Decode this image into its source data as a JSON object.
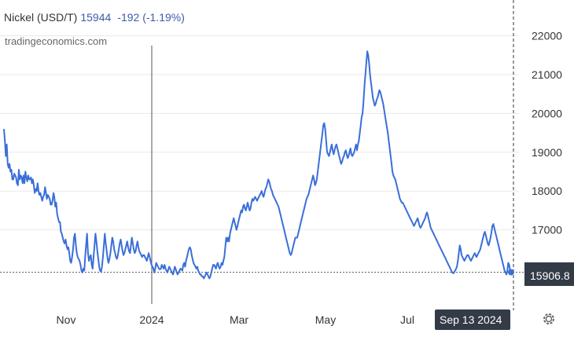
{
  "header": {
    "name": "Nickel (USD/T)",
    "price": "15944",
    "change": "-192 (-1.19%)",
    "source": "tradingeconomics.com"
  },
  "cursor": {
    "date_label": "Sep 13 2024",
    "value_label": "15906.8"
  },
  "colors": {
    "line": "#3a6fd8",
    "label_bg": "#333b47",
    "grid": "#e8e8e8",
    "title_accent": "#3a5ca8"
  },
  "icons": {
    "settings": "gear-icon"
  },
  "chart_data": {
    "type": "line",
    "title": "Nickel (USD/T)",
    "xlabel": "",
    "ylabel": "",
    "ylim": [
      15050,
      22600
    ],
    "y_ticks": [
      "17000",
      "18000",
      "19000",
      "20000",
      "21000",
      "22000"
    ],
    "x_ticks": [
      "Nov",
      "2024",
      "Mar",
      "May",
      "Jul"
    ],
    "grid": true,
    "last_value": 15906.8,
    "series": [
      {
        "values": [
          19600,
          19300,
          18900,
          19200,
          18700,
          18600,
          18700,
          18500,
          18550,
          18300,
          18300,
          18450,
          18400,
          18350,
          18200,
          18150,
          18550,
          18300,
          18400,
          18350,
          18200,
          18400,
          18200,
          18500,
          18350,
          18250,
          18400,
          18300,
          18300,
          18350,
          18200,
          18300,
          18150,
          17950,
          18050,
          18000,
          18200,
          18000,
          17900,
          17950,
          17850,
          17750,
          17850,
          17900,
          18100,
          17950,
          17800,
          17900,
          17850,
          17800,
          17650,
          17650,
          17750,
          17950,
          17850,
          17600,
          17700,
          17400,
          17300,
          17200,
          17200,
          16950,
          16900,
          16800,
          16700,
          16650,
          16750,
          16600,
          16500,
          16550,
          16400,
          16200,
          16150,
          16300,
          16500,
          16800,
          16900,
          16600,
          16400,
          16300,
          16250,
          16200,
          16100,
          15950,
          15900,
          16000,
          15950,
          16300,
          16600,
          16900,
          16400,
          16200,
          16300,
          16350,
          16100,
          16000,
          16300,
          16600,
          16900,
          16700,
          16450,
          16250,
          16050,
          15950,
          15920,
          16050,
          16300,
          16600,
          16900,
          16650,
          16450,
          16250,
          16150,
          16250,
          16400,
          16600,
          16800,
          16700,
          16500,
          16400,
          16300,
          16250,
          16350,
          16500,
          16650,
          16750,
          16600,
          16450,
          16350,
          16400,
          16500,
          16600,
          16700,
          16550,
          16450,
          16400,
          16600,
          16800,
          16650,
          16500,
          16400,
          16450,
          16600,
          16700,
          16550,
          16450,
          16400,
          16350,
          16300,
          16350,
          16350,
          16300,
          16250,
          16200,
          16300,
          16400,
          16300,
          16200,
          16100,
          16050,
          16000,
          15900,
          16000,
          16150,
          16100,
          16050,
          16000,
          15980,
          16000,
          16100,
          16050,
          16000,
          16100,
          16000,
          15950,
          15900,
          15980,
          16050,
          16000,
          15950,
          15900,
          15850,
          15950,
          16050,
          15980,
          15900,
          15850,
          15900,
          15950,
          16000,
          15980,
          15950,
          16100,
          16150,
          16050,
          16200,
          16300,
          16400,
          16500,
          16550,
          16500,
          16350,
          16250,
          16150,
          16100,
          16050,
          16000,
          16050,
          15950,
          15900,
          15850,
          15850,
          15800,
          15800,
          15750,
          15800,
          15850,
          15900,
          15850,
          15800,
          15750,
          15800,
          15900,
          16000,
          16100,
          16100,
          16050,
          16000,
          16100,
          16150,
          16050,
          16000,
          16050,
          16150,
          16100,
          16200,
          16300,
          16550,
          16800,
          16700,
          16800,
          16700,
          16900,
          17000,
          17100,
          17200,
          17300,
          17200,
          17100,
          17000,
          17100,
          17200,
          17300,
          17400,
          17500,
          17450,
          17600,
          17650,
          17550,
          17500,
          17600,
          17700,
          17600,
          17500,
          17550,
          17700,
          17800,
          17750,
          17800,
          17850,
          17800,
          17750,
          17800,
          17850,
          17900,
          17950,
          18000,
          17900,
          17850,
          17950,
          18050,
          18100,
          18200,
          18300,
          18250,
          18150,
          18050,
          18000,
          17900,
          17850,
          17800,
          17750,
          17700,
          17650,
          17600,
          17500,
          17400,
          17300,
          17200,
          17100,
          17000,
          16900,
          16800,
          16700,
          16600,
          16500,
          16400,
          16350,
          16400,
          16500,
          16600,
          16700,
          16800,
          16800,
          16800,
          16900,
          17000,
          17100,
          17200,
          17300,
          17400,
          17500,
          17600,
          17700,
          17800,
          17850,
          17900,
          18000,
          18100,
          18200,
          18300,
          18400,
          18300,
          18150,
          18200,
          18300,
          18500,
          18700,
          18900,
          19100,
          19300,
          19500,
          19700,
          19750,
          19600,
          19300,
          19000,
          18950,
          18900,
          19000,
          19100,
          19200,
          19050,
          18950,
          19050,
          19150,
          19200,
          19100,
          19000,
          18900,
          18800,
          18700,
          18750,
          18850,
          18900,
          19000,
          19050,
          18950,
          18850,
          18900,
          19000,
          19100,
          18950,
          18900,
          18950,
          19000,
          19100,
          19200,
          19050,
          19200,
          19300,
          19500,
          19700,
          19900,
          20000,
          20300,
          20700,
          21000,
          21300,
          21600,
          21500,
          21300,
          21000,
          20800,
          20600,
          20400,
          20300,
          20200,
          20250,
          20350,
          20400,
          20500,
          20600,
          20550,
          20450,
          20350,
          20250,
          20100,
          19950,
          19800,
          19650,
          19500,
          19300,
          19100,
          18900,
          18700,
          18500,
          18400,
          18350,
          18300,
          18200,
          18100,
          18000,
          17900,
          17800,
          17750,
          17700,
          17700,
          17650,
          17600,
          17550,
          17500,
          17450,
          17400,
          17350,
          17300,
          17250,
          17200,
          17150,
          17100,
          17150,
          17200,
          17250,
          17300,
          17200,
          17100,
          17050,
          17100,
          17150,
          17200,
          17250,
          17300,
          17400,
          17450,
          17350,
          17250,
          17150,
          17050,
          17000,
          16950,
          16900,
          16850,
          16800,
          16750,
          16700,
          16650,
          16600,
          16550,
          16500,
          16450,
          16400,
          16350,
          16300,
          16250,
          16200,
          16150,
          16100,
          16050,
          16000,
          15950,
          15900,
          15880,
          15900,
          15950,
          15990,
          16050,
          16200,
          16400,
          16600,
          16500,
          16350,
          16300,
          16250,
          16200,
          16250,
          16300,
          16350,
          16350,
          16300,
          16250,
          16200,
          16250,
          16300,
          16350,
          16400,
          16350,
          16300,
          16350,
          16400,
          16450,
          16500,
          16600,
          16700,
          16800,
          16900,
          16950,
          16850,
          16750,
          16650,
          16600,
          16700,
          16800,
          16950,
          17100,
          17150,
          17050,
          16950,
          16850,
          16750,
          16650,
          16550,
          16450,
          16350,
          16250,
          16150,
          16050,
          15950,
          15900,
          15850,
          15950,
          16150,
          16100,
          15950,
          15906.8
        ]
      }
    ]
  }
}
